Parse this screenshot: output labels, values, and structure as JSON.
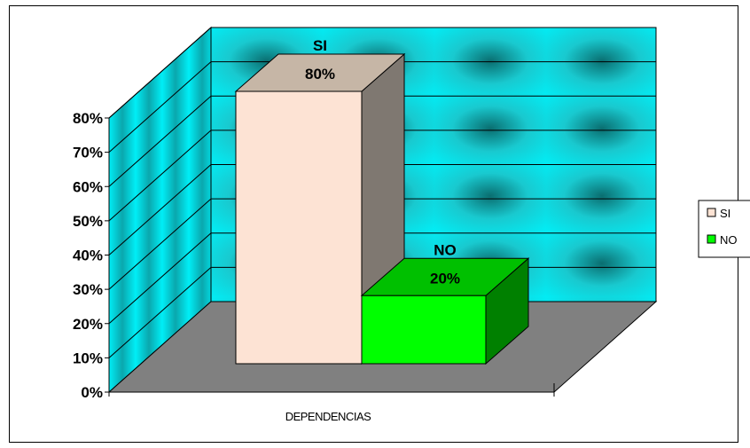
{
  "chart_data": {
    "type": "bar",
    "categories": [
      "DEPENDENCIAS"
    ],
    "series": [
      {
        "name": "SI",
        "values": [
          80
        ],
        "color": "#fde3d4"
      },
      {
        "name": "NO",
        "values": [
          20
        ],
        "color": "#00ff00"
      }
    ],
    "data_labels": [
      {
        "series": "SI",
        "name_label": "SI",
        "value_label": "80%"
      },
      {
        "series": "NO",
        "name_label": "NO",
        "value_label": "20%"
      }
    ],
    "y_ticks": [
      "0%",
      "10%",
      "20%",
      "30%",
      "40%",
      "50%",
      "60%",
      "70%",
      "80%"
    ],
    "ylim": [
      0,
      80
    ],
    "xlabel": "",
    "ylabel": "",
    "title": "",
    "legend": {
      "position": "right",
      "entries": [
        "SI",
        "NO"
      ]
    },
    "grid": true,
    "three_d": true,
    "colors": {
      "wall": "#00e8f0",
      "floor": "#808080",
      "gridline": "#000000"
    }
  }
}
